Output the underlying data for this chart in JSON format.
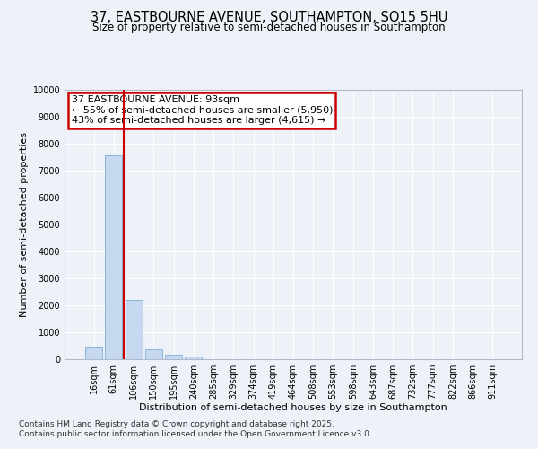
{
  "title_line1": "37, EASTBOURNE AVENUE, SOUTHAMPTON, SO15 5HU",
  "title_line2": "Size of property relative to semi-detached houses in Southampton",
  "xlabel": "Distribution of semi-detached houses by size in Southampton",
  "ylabel": "Number of semi-detached properties",
  "categories": [
    "16sqm",
    "61sqm",
    "106sqm",
    "150sqm",
    "195sqm",
    "240sqm",
    "285sqm",
    "329sqm",
    "374sqm",
    "419sqm",
    "464sqm",
    "508sqm",
    "553sqm",
    "598sqm",
    "643sqm",
    "687sqm",
    "732sqm",
    "777sqm",
    "822sqm",
    "866sqm",
    "911sqm"
  ],
  "values": [
    480,
    7580,
    2200,
    380,
    155,
    85,
    0,
    0,
    0,
    0,
    0,
    0,
    0,
    0,
    0,
    0,
    0,
    0,
    0,
    0,
    0
  ],
  "bar_color": "#c5d8f0",
  "bar_edge_color": "#7aafd4",
  "vline_x": 1.5,
  "vline_color": "#cc0000",
  "annotation_title": "37 EASTBOURNE AVENUE: 93sqm",
  "annotation_line1": "← 55% of semi-detached houses are smaller (5,950)",
  "annotation_line2": "43% of semi-detached houses are larger (4,615) →",
  "annotation_box_color": "#cc0000",
  "ylim": [
    0,
    10000
  ],
  "yticks": [
    0,
    1000,
    2000,
    3000,
    4000,
    5000,
    6000,
    7000,
    8000,
    9000,
    10000
  ],
  "footer_line1": "Contains HM Land Registry data © Crown copyright and database right 2025.",
  "footer_line2": "Contains public sector information licensed under the Open Government Licence v3.0.",
  "bg_color": "#eef2f8",
  "plot_bg_color": "#eef2f8",
  "title_fontsize": 10.5,
  "subtitle_fontsize": 8.5,
  "axis_label_fontsize": 8,
  "tick_fontsize": 7,
  "annot_fontsize": 8,
  "footer_fontsize": 6.5
}
